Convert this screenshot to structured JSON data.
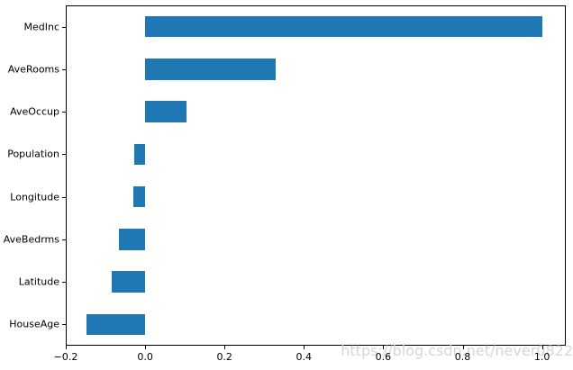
{
  "figure": {
    "background": "#ffffff"
  },
  "chart_data": {
    "type": "bar",
    "orientation": "horizontal",
    "title": "",
    "xlabel": "",
    "ylabel": "",
    "categories": [
      "MedInc",
      "AveRooms",
      "AveOccup",
      "Population",
      "Longitude",
      "AveBedrms",
      "Latitude",
      "HouseAge"
    ],
    "values": [
      1.0,
      0.33,
      0.105,
      -0.028,
      -0.029,
      -0.066,
      -0.084,
      -0.149
    ],
    "xlim": [
      -0.2,
      1.06
    ],
    "xticks": [
      -0.2,
      0.0,
      0.2,
      0.4,
      0.6,
      0.8,
      1.0
    ],
    "bar_color": "#1f77b4",
    "axis_color": "#000000",
    "tick_label_color": "#000000",
    "grid": false,
    "legend": false,
    "bar_thickness_fraction": 0.5
  },
  "watermark": {
    "text": "https://blog.csdn.net/never0822",
    "color": "#d6d6d6"
  }
}
